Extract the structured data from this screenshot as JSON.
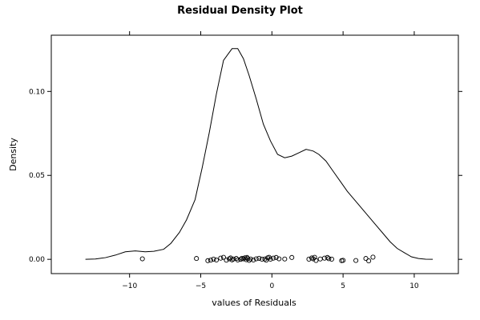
{
  "chart_data": {
    "type": "line",
    "title": "Residual Density Plot",
    "xlabel": "values of Residuals",
    "ylabel": "Density",
    "xlim": [
      -15.5,
      13.1
    ],
    "ylim": [
      -0.0085,
      0.1335
    ],
    "x_ticks": [
      -10,
      -5,
      0,
      5,
      10
    ],
    "x_tick_labels": [
      "−10",
      "−5",
      "0",
      "5",
      "10"
    ],
    "y_ticks": [
      0.0,
      0.05,
      0.1
    ],
    "y_tick_labels": [
      "0.00",
      "0.05",
      "0.10"
    ],
    "grid": false,
    "series": [
      {
        "x": [
          -13.1,
          -12.4,
          -11.7,
          -11.0,
          -10.3,
          -9.6,
          -8.9,
          -8.3,
          -7.6,
          -7.1,
          -6.5,
          -6.0,
          -5.4,
          -4.9,
          -4.4,
          -3.9,
          -3.4,
          -2.8,
          -2.4,
          -2.0,
          -1.6,
          -1.1,
          -0.6,
          -0.1,
          0.4,
          0.9,
          1.4,
          1.9,
          2.4,
          2.9,
          3.3,
          3.8,
          4.3,
          4.8,
          5.3,
          5.8,
          6.3,
          6.8,
          7.3,
          7.8,
          8.3,
          8.8,
          9.3,
          9.8,
          10.3,
          10.8,
          11.3
        ],
        "y": [
          0.0,
          0.0002,
          0.001,
          0.0025,
          0.0045,
          0.005,
          0.0045,
          0.0048,
          0.006,
          0.0095,
          0.016,
          0.0235,
          0.0355,
          0.0545,
          0.0755,
          0.0985,
          0.1185,
          0.1255,
          0.1255,
          0.1195,
          0.1095,
          0.0955,
          0.0805,
          0.0705,
          0.0625,
          0.0605,
          0.0615,
          0.0635,
          0.0655,
          0.0645,
          0.0625,
          0.0585,
          0.0525,
          0.0465,
          0.0405,
          0.0355,
          0.0305,
          0.0255,
          0.0205,
          0.0155,
          0.0105,
          0.0065,
          0.004,
          0.0015,
          0.0005,
          0.0001,
          0.0
        ]
      }
    ],
    "rug": {
      "x": [
        -9.1,
        -5.3,
        -4.5,
        -4.3,
        -4.1,
        -3.9,
        -3.6,
        -3.4,
        -3.2,
        -3.0,
        -2.9,
        -2.8,
        -2.7,
        -2.5,
        -2.4,
        -2.2,
        -2.1,
        -2.0,
        -1.9,
        -1.8,
        -1.75,
        -1.7,
        -1.6,
        -1.5,
        -1.3,
        -1.1,
        -0.9,
        -0.7,
        -0.5,
        -0.4,
        -0.3,
        -0.2,
        -0.1,
        0.1,
        0.3,
        0.5,
        0.9,
        1.4,
        2.6,
        2.8,
        2.9,
        3.0,
        3.1,
        3.4,
        3.7,
        3.9,
        4.0,
        4.2,
        4.9,
        5.0,
        5.9,
        6.6,
        6.8,
        7.1
      ],
      "y": [
        0.0003,
        0.0005,
        -0.0008,
        -0.0005,
        0.0001,
        -0.0004,
        0.0007,
        0.0012,
        -0.0005,
        0.0003,
        0.0008,
        -0.0003,
        0.0002,
        0.0005,
        -0.0004,
        0.0,
        0.0006,
        0.0003,
        0.0009,
        -0.0002,
        0.0011,
        0.0004,
        -0.0006,
        0.0002,
        -0.0004,
        0.0003,
        0.0006,
        0.0001,
        0.0002,
        -0.0005,
        0.0009,
        0.0012,
        0.0001,
        0.0007,
        0.0011,
        0.0003,
        0.0002,
        0.0011,
        0.0001,
        0.0008,
        0.0003,
        0.0012,
        -0.0007,
        0.0002,
        0.0007,
        0.0011,
        0.0004,
        0.0001,
        -0.0008,
        -0.0006,
        -0.0007,
        0.0005,
        -0.0009,
        0.0013
      ]
    }
  }
}
